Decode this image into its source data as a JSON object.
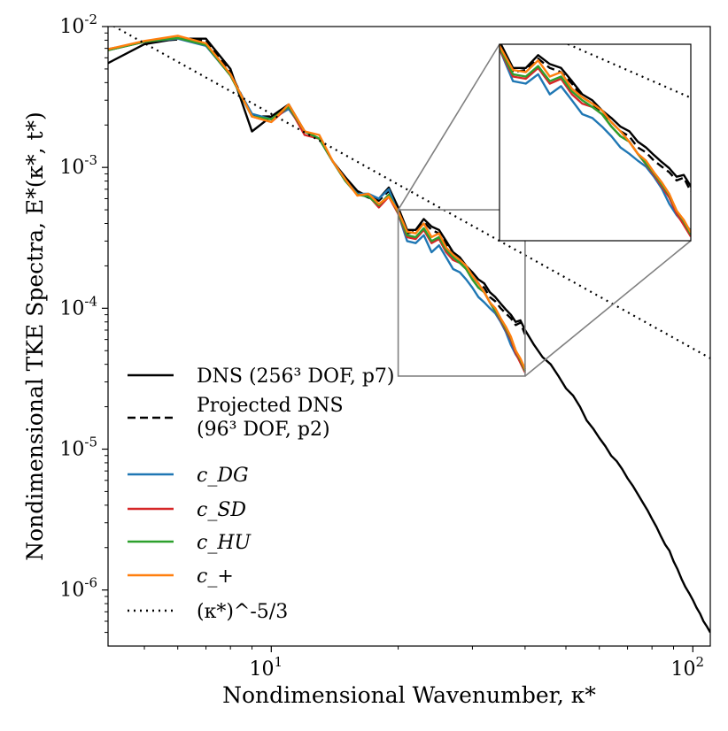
{
  "chart_data": {
    "type": "line",
    "xscale": "log",
    "yscale": "log",
    "xlim": [
      4.1,
      110
    ],
    "ylim": [
      4e-07,
      0.01
    ],
    "xlabel": "Nondimensional Wavenumber, κ*",
    "ylabel": "Nondimensional TKE Spectra, E*(κ*, t*)",
    "x_ticks": [
      {
        "value": 10,
        "label": "10^1"
      },
      {
        "value": 100,
        "label": "10^2"
      }
    ],
    "y_ticks": [
      {
        "value": 1e-06,
        "label": "10^-6"
      },
      {
        "value": 1e-05,
        "label": "10^-5"
      },
      {
        "value": 0.0001,
        "label": "10^-4"
      },
      {
        "value": 0.001,
        "label": "10^-3"
      },
      {
        "value": 0.01,
        "label": "10^-2"
      }
    ],
    "grid": false,
    "legend_position": "lower-left",
    "series": [
      {
        "name": "DNS (256³ DOF, p7)",
        "color": "#000000",
        "style": "solid",
        "x": [
          4.1,
          5,
          6,
          7,
          8,
          9,
          10,
          11,
          12,
          13,
          14,
          15,
          16,
          17,
          18,
          19,
          20,
          21,
          22,
          23,
          24,
          25,
          26,
          27,
          28,
          29,
          30,
          31,
          32,
          33,
          34,
          35,
          36,
          37,
          38,
          39,
          40,
          42,
          44,
          46,
          48,
          50,
          52,
          54,
          56,
          58,
          60,
          62,
          64,
          66,
          68,
          70,
          72,
          74,
          76,
          78,
          80,
          82,
          84,
          86,
          88,
          90,
          92,
          94,
          96,
          98,
          100,
          102,
          104,
          106,
          108,
          110
        ],
        "y": [
          0.0055,
          0.0075,
          0.0082,
          0.0082,
          0.005,
          0.0018,
          0.0023,
          0.0028,
          0.0018,
          0.0016,
          0.0011,
          0.00085,
          0.00068,
          0.00062,
          0.0006,
          0.00072,
          0.00052,
          0.00036,
          0.00036,
          0.00043,
          0.00038,
          0.00036,
          0.0003,
          0.00025,
          0.00023,
          0.0002,
          0.00018,
          0.00016,
          0.00015,
          0.00013,
          0.00012,
          0.000108,
          9.8e-05,
          9e-05,
          8e-05,
          8.2e-05,
          7e-05,
          5.5e-05,
          4.5e-05,
          4e-05,
          3.3e-05,
          2.7e-05,
          2.4e-05,
          2e-05,
          1.6e-05,
          1.4e-05,
          1.2e-05,
          1.05e-05,
          9e-06,
          8.2e-06,
          7.2e-06,
          6.2e-06,
          5.5e-06,
          4.8e-06,
          4.2e-06,
          3.7e-06,
          3.2e-06,
          2.8e-06,
          2.4e-06,
          2.1e-06,
          1.9e-06,
          1.6e-06,
          1.4e-06,
          1.2e-06,
          1.05e-06,
          9.5e-07,
          8.5e-07,
          7.5e-07,
          6.8e-07,
          6e-07,
          5.5e-07,
          5e-07
        ]
      },
      {
        "name": "Projected DNS (96³ DOF, p2)",
        "color": "#000000",
        "style": "dashed",
        "x": [
          4.1,
          5,
          6,
          7,
          8,
          9,
          10,
          11,
          12,
          13,
          14,
          15,
          16,
          17,
          18,
          19,
          20,
          21,
          22,
          23,
          24,
          25,
          26,
          27,
          28,
          29,
          30,
          31,
          32,
          33,
          34,
          35,
          36,
          37,
          38,
          39,
          40
        ],
        "y": [
          0.0069,
          0.0078,
          0.0081,
          0.008,
          0.0047,
          0.0023,
          0.0023,
          0.0027,
          0.0018,
          0.0016,
          0.0011,
          0.00084,
          0.00066,
          0.00061,
          0.00058,
          0.00068,
          0.0005,
          0.00034,
          0.00035,
          0.00041,
          0.00036,
          0.00034,
          0.00029,
          0.00024,
          0.00022,
          0.00019,
          0.00017,
          0.00015,
          0.00014,
          0.00012,
          0.000112,
          0.0001,
          9.2e-05,
          8.5e-05,
          7.6e-05,
          7.9e-05,
          6.5e-05
        ]
      },
      {
        "name": "c_DG",
        "color": "#1f77b4",
        "style": "solid",
        "x": [
          4.1,
          5,
          6,
          7,
          8,
          9,
          10,
          11,
          12,
          13,
          14,
          15,
          16,
          17,
          18,
          19,
          20,
          21,
          22,
          23,
          24,
          25,
          26,
          27,
          28,
          29,
          30,
          31,
          32,
          33,
          34,
          35,
          36,
          37,
          38,
          39,
          40
        ],
        "y": [
          0.0068,
          0.0078,
          0.0082,
          0.0073,
          0.0045,
          0.0024,
          0.0022,
          0.0026,
          0.0018,
          0.0016,
          0.0011,
          0.0008,
          0.00065,
          0.00065,
          0.0006,
          0.0007,
          0.00047,
          0.0003,
          0.00029,
          0.00033,
          0.00025,
          0.00028,
          0.00023,
          0.00019,
          0.00018,
          0.00016,
          0.00014,
          0.00012,
          0.00011,
          0.0001,
          9.2e-05,
          8e-05,
          6.8e-05,
          5.5e-05,
          4.7e-05,
          4.2e-05,
          3.8e-05
        ]
      },
      {
        "name": "c_SD",
        "color": "#d62728",
        "style": "solid",
        "x": [
          4.1,
          5,
          6,
          7,
          8,
          9,
          10,
          11,
          12,
          13,
          14,
          15,
          16,
          17,
          18,
          19,
          20,
          21,
          22,
          23,
          24,
          25,
          26,
          27,
          28,
          29,
          30,
          31,
          32,
          33,
          34,
          35,
          36,
          37,
          38,
          39,
          40
        ],
        "y": [
          0.0068,
          0.0078,
          0.0083,
          0.0074,
          0.0045,
          0.0023,
          0.0021,
          0.0027,
          0.0017,
          0.0016,
          0.0011,
          0.0008,
          0.00064,
          0.00063,
          0.00052,
          0.00062,
          0.00047,
          0.00032,
          0.00031,
          0.00036,
          0.00029,
          0.00031,
          0.00025,
          0.00022,
          0.00021,
          0.00019,
          0.00016,
          0.00014,
          0.00013,
          0.00011,
          9.5e-05,
          8.2e-05,
          7e-05,
          6e-05,
          4.8e-05,
          4.1e-05,
          3.5e-05
        ]
      },
      {
        "name": "c_HU",
        "color": "#2ca02c",
        "style": "solid",
        "x": [
          4.1,
          5,
          6,
          7,
          8,
          9,
          10,
          11,
          12,
          13,
          14,
          15,
          16,
          17,
          18,
          19,
          20,
          21,
          22,
          23,
          24,
          25,
          26,
          27,
          28,
          29,
          30,
          31,
          32,
          33,
          34,
          35,
          36,
          37,
          38,
          39,
          40
        ],
        "y": [
          0.0068,
          0.0078,
          0.0083,
          0.0074,
          0.0045,
          0.0023,
          0.0022,
          0.0027,
          0.0018,
          0.0016,
          0.0011,
          0.0008,
          0.00064,
          0.00062,
          0.00054,
          0.00064,
          0.00048,
          0.00033,
          0.00032,
          0.00037,
          0.0003,
          0.00032,
          0.00026,
          0.00023,
          0.00021,
          0.00019,
          0.00016,
          0.00014,
          0.00013,
          0.00011,
          9.6e-05,
          8.4e-05,
          7.2e-05,
          6.2e-05,
          5e-05,
          4.3e-05,
          3.6e-05
        ]
      },
      {
        "name": "c_+",
        "color": "#ff7f0e",
        "style": "solid",
        "x": [
          4.1,
          5,
          6,
          7,
          8,
          9,
          10,
          11,
          12,
          13,
          14,
          15,
          16,
          17,
          18,
          19,
          20,
          21,
          22,
          23,
          24,
          25,
          26,
          27,
          28,
          29,
          30,
          31,
          32,
          33,
          34,
          35,
          36,
          37,
          38,
          39,
          40
        ],
        "y": [
          0.0069,
          0.0079,
          0.0086,
          0.0076,
          0.0046,
          0.0023,
          0.0021,
          0.0028,
          0.0018,
          0.0017,
          0.0011,
          0.00082,
          0.00063,
          0.00065,
          0.00055,
          0.00062,
          0.00049,
          0.00035,
          0.00034,
          0.0004,
          0.00032,
          0.00034,
          0.00027,
          0.00024,
          0.00022,
          0.0002,
          0.00017,
          0.00015,
          0.00013,
          0.00011,
          0.0001,
          8.5e-05,
          7.4e-05,
          6.3e-05,
          5e-05,
          4.4e-05,
          3.7e-05
        ]
      },
      {
        "name": "(κ*)^-5/3",
        "color": "#000000",
        "style": "dotted",
        "x": [
          4.1,
          110
        ],
        "y": [
          0.0106,
          4.42e-05
        ]
      }
    ],
    "inset": {
      "xlim": [
        20,
        40
      ],
      "ylim": [
        3.3e-05,
        0.0005
      ]
    }
  }
}
